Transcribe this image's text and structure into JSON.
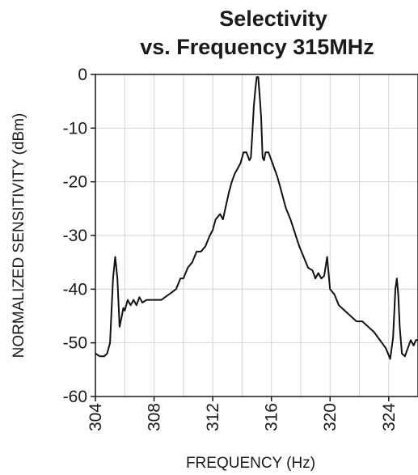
{
  "chart_data": {
    "type": "line",
    "title_line1": "Selectivity",
    "title_line2": "vs. Frequency 315MHz",
    "xlabel": "FREQUENCY (Hz)",
    "ylabel": "NORMALIZED SENSITIVITY (dBm)",
    "xlim": [
      304,
      326
    ],
    "ylim": [
      -60,
      0
    ],
    "xticks": [
      "304",
      "308",
      "312",
      "316",
      "320",
      "324"
    ],
    "yticks": [
      "0",
      "-10",
      "-20",
      "-30",
      "-40",
      "-50",
      "-60"
    ],
    "grid": true,
    "series": [
      {
        "x": [
          304.0,
          304.3,
          304.6,
          304.8,
          305.0,
          305.2,
          305.35,
          305.5,
          305.65,
          305.8,
          305.9,
          306.0,
          306.2,
          306.4,
          306.6,
          306.8,
          307.0,
          307.2,
          307.5,
          307.8,
          308.1,
          308.5,
          309.0,
          309.5,
          309.8,
          310.0,
          310.3,
          310.6,
          310.9,
          311.2,
          311.5,
          311.8,
          312.0,
          312.2,
          312.5,
          312.7,
          312.9,
          313.1,
          313.3,
          313.5,
          313.7,
          313.9,
          314.1,
          314.3,
          314.5,
          314.6,
          314.7,
          314.8,
          314.9,
          315.0,
          315.1,
          315.2,
          315.3,
          315.4,
          315.5,
          315.6,
          315.8,
          316.0,
          316.2,
          316.4,
          316.6,
          316.8,
          317.0,
          317.3,
          317.6,
          317.9,
          318.2,
          318.5,
          318.8,
          319.0,
          319.2,
          319.4,
          319.6,
          319.8,
          320.0,
          320.3,
          320.6,
          321.0,
          321.4,
          321.8,
          322.2,
          322.6,
          323.0,
          323.4,
          323.8,
          324.1,
          324.3,
          324.45,
          324.55,
          324.65,
          324.75,
          324.9,
          325.1,
          325.3,
          325.5,
          325.7,
          325.85,
          326.0
        ],
        "y": [
          -52.0,
          -52.5,
          -52.5,
          -52.0,
          -50.0,
          -38.0,
          -34.0,
          -38.0,
          -47.0,
          -45.0,
          -43.5,
          -44.0,
          -42.0,
          -43.0,
          -42.0,
          -43.0,
          -41.5,
          -42.5,
          -42.0,
          -42.0,
          -42.0,
          -42.0,
          -41.0,
          -40.0,
          -38.0,
          -38.0,
          -36.0,
          -35.0,
          -33.0,
          -33.0,
          -32.0,
          -30.0,
          -29.0,
          -27.0,
          -26.0,
          -27.0,
          -24.5,
          -22.0,
          -20.0,
          -18.5,
          -17.5,
          -16.5,
          -14.5,
          -14.5,
          -16.0,
          -15.5,
          -11.0,
          -6.0,
          -3.0,
          -0.5,
          -0.5,
          -4.0,
          -8.0,
          -15.5,
          -16.0,
          -14.5,
          -14.5,
          -16.0,
          -17.5,
          -19.0,
          -21.0,
          -23.0,
          -25.0,
          -27.0,
          -29.5,
          -32.0,
          -34.0,
          -36.0,
          -36.5,
          -38.0,
          -37.0,
          -38.0,
          -37.5,
          -34.0,
          -40.0,
          -41.0,
          -43.0,
          -44.0,
          -45.0,
          -46.0,
          -46.0,
          -47.0,
          -48.0,
          -49.5,
          -51.0,
          -53.0,
          -49.0,
          -40.0,
          -38.0,
          -41.0,
          -47.0,
          -52.0,
          -52.5,
          -51.0,
          -49.5,
          -50.5,
          -49.5,
          -49.5
        ]
      }
    ]
  }
}
